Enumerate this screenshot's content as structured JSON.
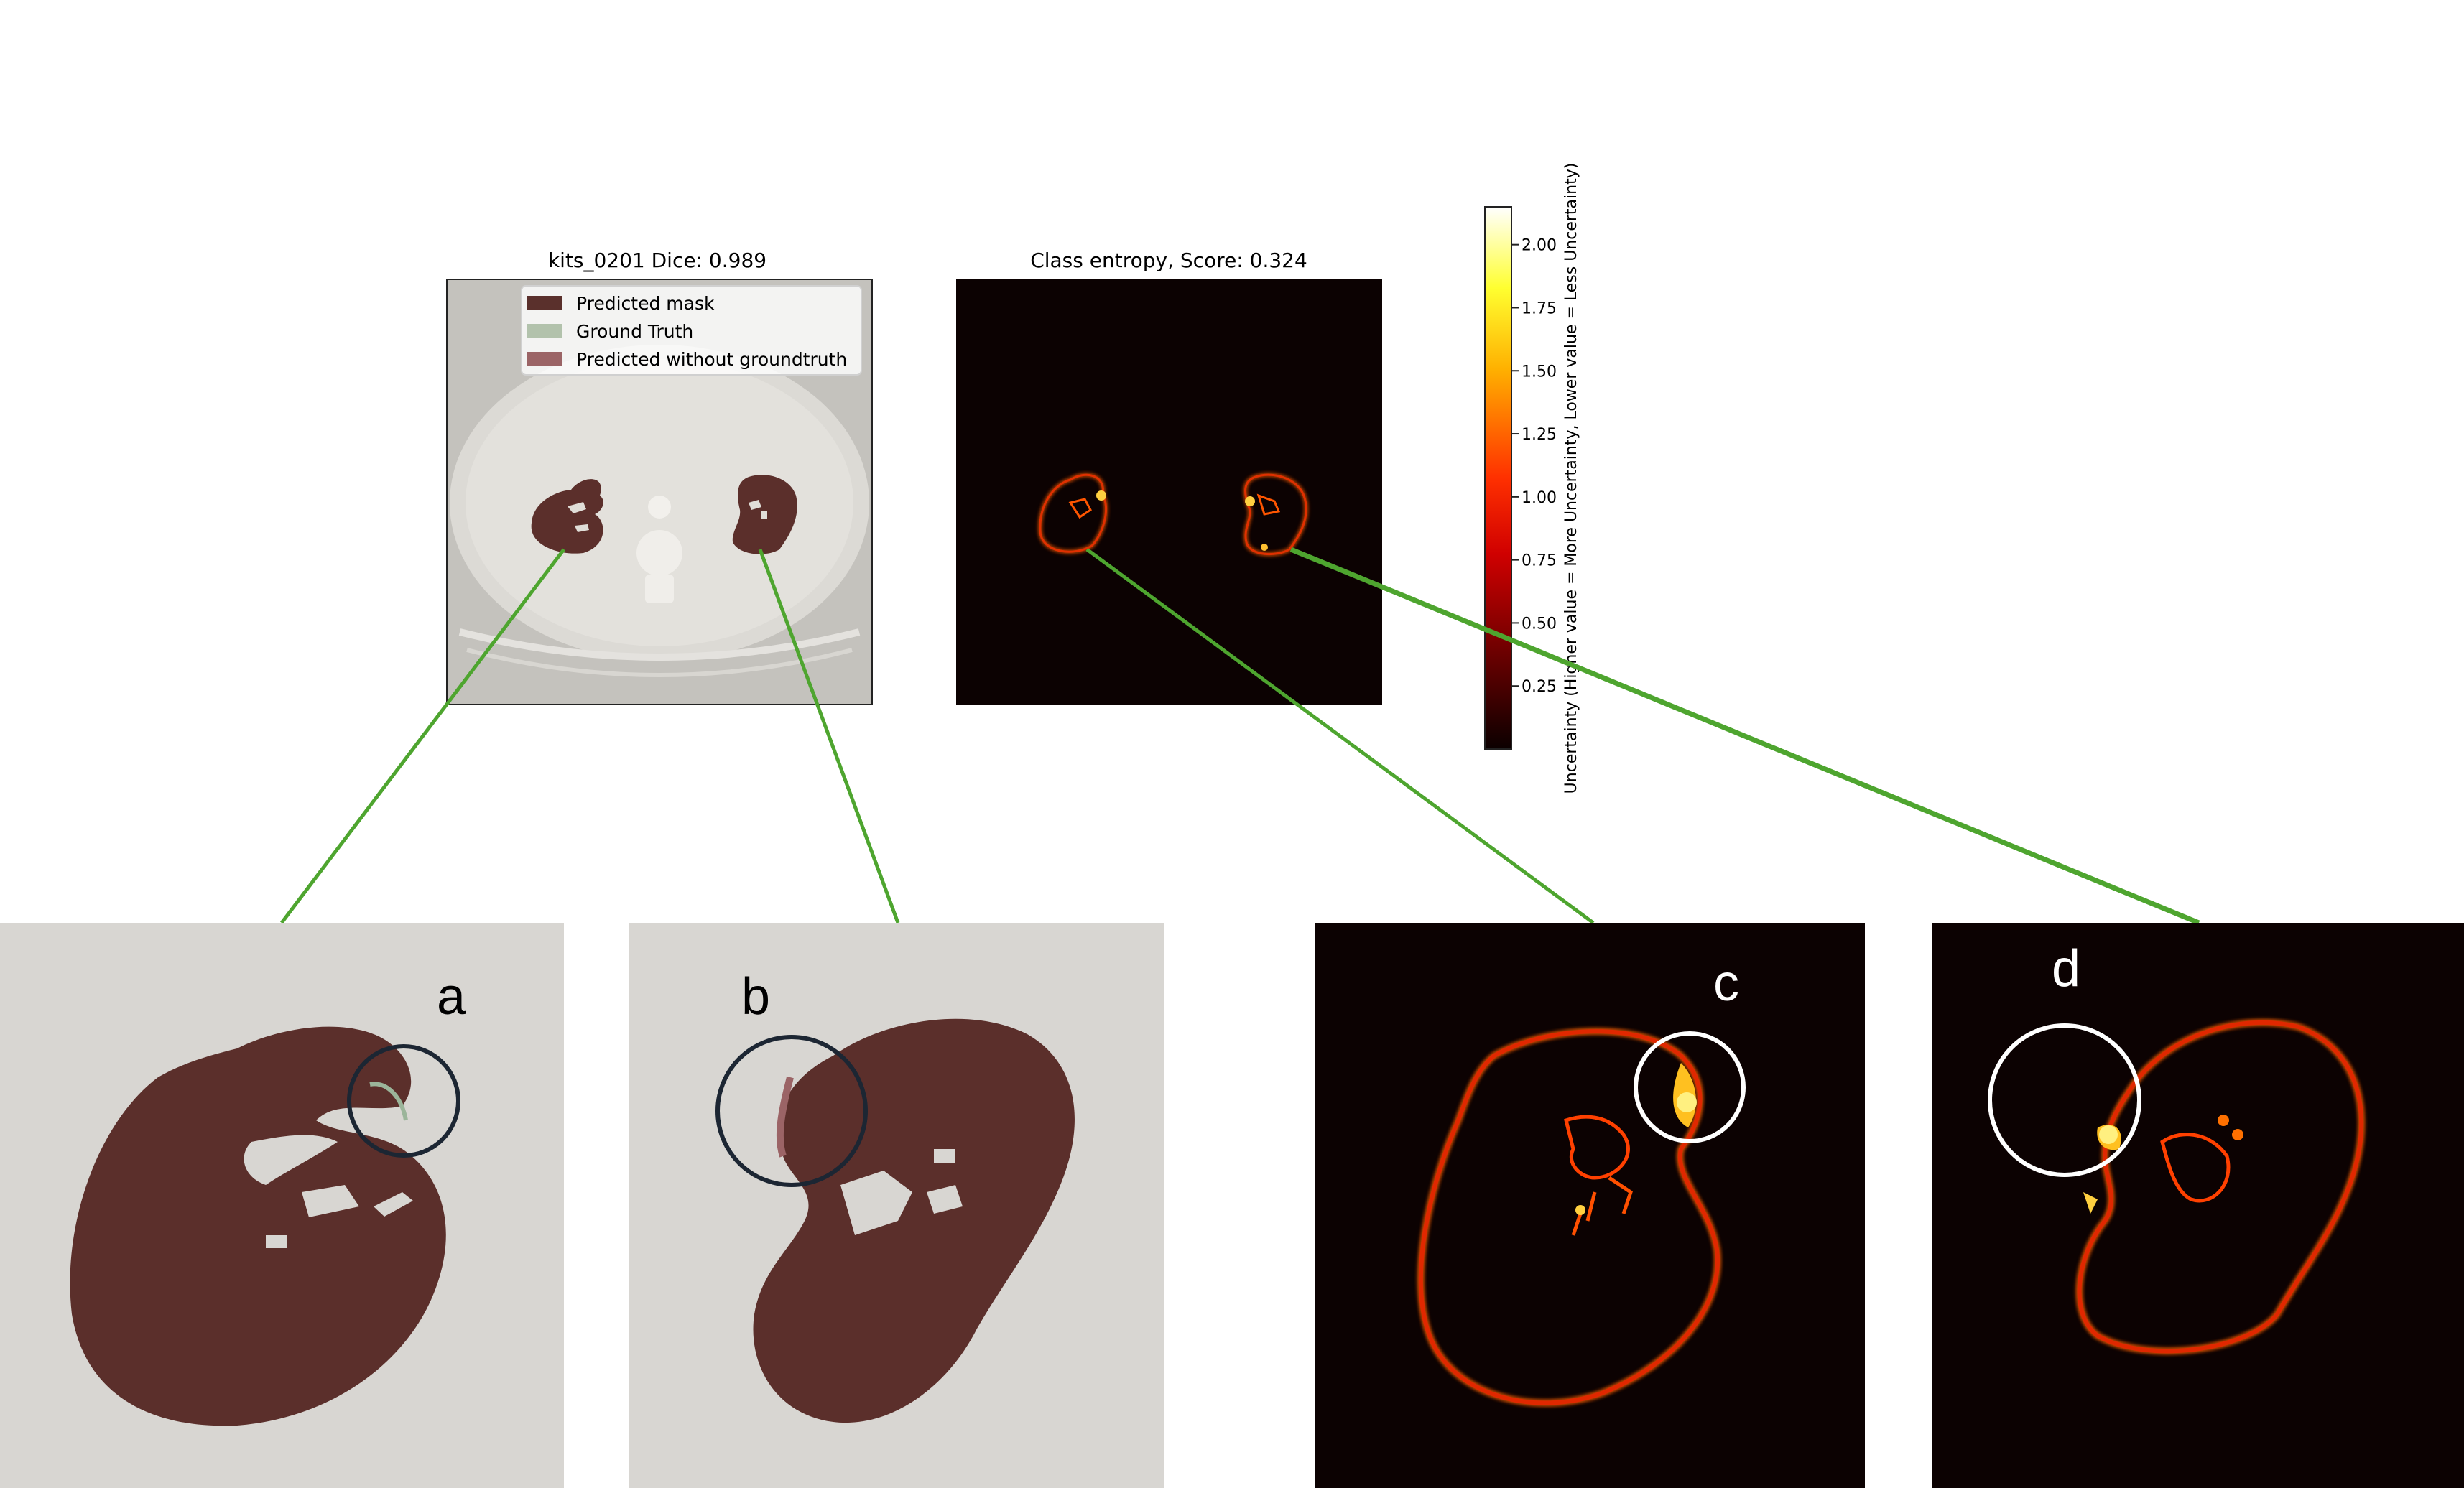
{
  "panels": {
    "segmentation": {
      "title": "kits_0201 Dice: 0.989",
      "legend": [
        {
          "label": "Predicted mask",
          "color": "#5a302c"
        },
        {
          "label": "Ground Truth",
          "color": "#b2c2ac"
        },
        {
          "label": "Predicted without groundtruth",
          "color": "#9b6466"
        }
      ]
    },
    "uncertainty": {
      "title": "Class entropy, Score: 0.324"
    }
  },
  "colorbar": {
    "label": "Uncertainty (Higher value = More Uncertainty, Lower value = Less Uncertainty)",
    "ticks": [
      "0.25",
      "0.50",
      "0.75",
      "1.00",
      "1.25",
      "1.50",
      "1.75",
      "2.00"
    ],
    "min": 0,
    "max": 2.15,
    "colormap": "hot"
  },
  "zoom_labels": [
    "a",
    "b",
    "c",
    "d"
  ],
  "colors": {
    "connector": "#4ea52f",
    "kidney": "#5b2f2b",
    "ct_background": "#d8d6d2",
    "entropy_background": "#0c0202",
    "circle_dark": "#1c2633",
    "circle_light": "#ffffff"
  }
}
